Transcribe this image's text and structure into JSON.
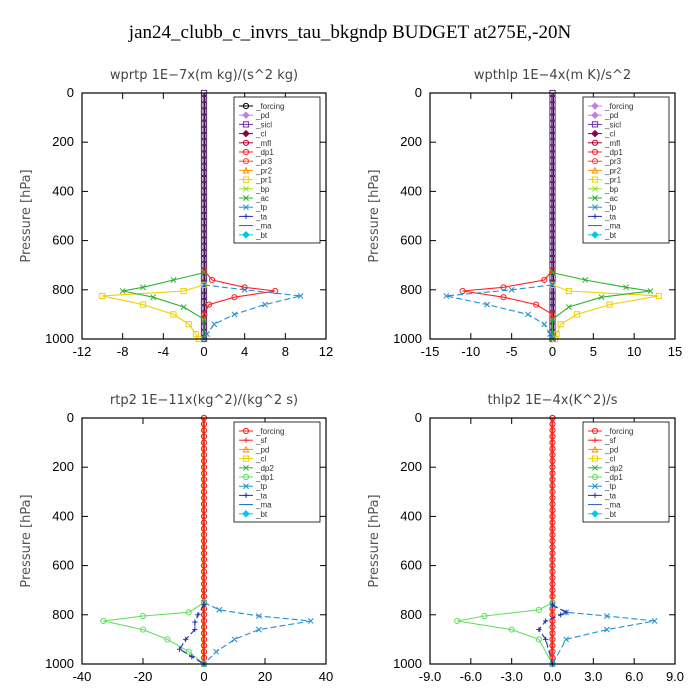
{
  "figure": {
    "title": "jan24_clubb_c_invrs_tau_bkgndp  BUDGET at275E,-20N"
  },
  "chart_data": [
    {
      "type": "line",
      "title": "wprtp  1E−7x(m kg)/(s^2 kg)",
      "ylabel": "Pressure [hPa]",
      "xlim": [
        -12,
        12
      ],
      "ylim": [
        1000,
        0
      ],
      "xticks": [
        "-12",
        "-8",
        "-4",
        "0",
        "4",
        "8",
        "12"
      ],
      "yticks": [
        "0",
        "200",
        "400",
        "600",
        "800",
        "1000"
      ],
      "grid": false,
      "legend": "top-right",
      "series": [
        {
          "name": "_forcing",
          "color": "#000000",
          "marker": "circle",
          "values": []
        },
        {
          "name": "_pd",
          "color": "#c080e0",
          "marker": "diamond",
          "values": []
        },
        {
          "name": "_sicl",
          "color": "#7030a0",
          "marker": "square",
          "values": []
        },
        {
          "name": "_cl",
          "color": "#8b0046",
          "marker": "diamond",
          "values": []
        },
        {
          "name": "_mfl",
          "color": "#b00030",
          "marker": "circle",
          "values": []
        },
        {
          "name": "_dp1",
          "color": "#ff2020",
          "marker": "circle",
          "values": [
            [
              0,
              720
            ],
            [
              0.8,
              760
            ],
            [
              4,
              790
            ],
            [
              7,
              805
            ],
            [
              3,
              830
            ],
            [
              0.5,
              860
            ],
            [
              0,
              900
            ],
            [
              0,
              1000
            ]
          ]
        },
        {
          "name": "_pr3",
          "color": "#ff4040",
          "marker": "circle",
          "values": []
        },
        {
          "name": "_pr2",
          "color": "#ff9000",
          "marker": "triangle",
          "values": []
        },
        {
          "name": "_pr1",
          "color": "#f0d000",
          "marker": "square",
          "values": [
            [
              0,
              780
            ],
            [
              -2,
              805
            ],
            [
              -10,
              825
            ],
            [
              -6,
              860
            ],
            [
              -3,
              900
            ],
            [
              -1.5,
              940
            ],
            [
              -0.8,
              980
            ],
            [
              -0.5,
              1000
            ]
          ]
        },
        {
          "name": "_bp",
          "color": "#90e020",
          "marker": "x",
          "values": []
        },
        {
          "name": "_ac",
          "color": "#30b030",
          "marker": "x",
          "values": [
            [
              0,
              730
            ],
            [
              -3,
              760
            ],
            [
              -6,
              790
            ],
            [
              -8,
              805
            ],
            [
              -5,
              830
            ],
            [
              -2,
              870
            ],
            [
              0,
              920
            ],
            [
              0,
              1000
            ]
          ]
        },
        {
          "name": "_tp",
          "color": "#2090d0",
          "marker": "x",
          "values": [
            [
              0,
              780
            ],
            [
              4,
              800
            ],
            [
              9.5,
              825
            ],
            [
              6,
              860
            ],
            [
              3,
              900
            ],
            [
              1,
              940
            ],
            [
              0.3,
              980
            ],
            [
              0,
              1000
            ]
          ]
        },
        {
          "name": "_ta",
          "color": "#2030b0",
          "marker": "plus",
          "values": []
        },
        {
          "name": "_ma",
          "color": "#2060c0",
          "marker": "none",
          "values": []
        },
        {
          "name": "_bt",
          "color": "#00c8e8",
          "marker": "diamond",
          "values": []
        }
      ]
    },
    {
      "type": "line",
      "title": "wpthlp  1E−4x(m K)/s^2",
      "ylabel": "Pressure [hPa]",
      "xlim": [
        -15,
        15
      ],
      "ylim": [
        1000,
        0
      ],
      "xticks": [
        "-15",
        "-10",
        "-5",
        "0",
        "5",
        "10",
        "15"
      ],
      "yticks": [
        "0",
        "200",
        "400",
        "600",
        "800",
        "1000"
      ],
      "grid": false,
      "legend": "top-right",
      "series": [
        {
          "name": "_forcing",
          "color": "#c080e0",
          "marker": "diamond",
          "values": []
        },
        {
          "name": "_pd",
          "color": "#c080e0",
          "marker": "diamond",
          "values": []
        },
        {
          "name": "_sicl",
          "color": "#7030a0",
          "marker": "square",
          "values": []
        },
        {
          "name": "_cl",
          "color": "#8b0046",
          "marker": "diamond",
          "values": []
        },
        {
          "name": "_mfl",
          "color": "#b00030",
          "marker": "circle",
          "values": []
        },
        {
          "name": "_dp1",
          "color": "#ff2020",
          "marker": "circle",
          "values": [
            [
              0,
              720
            ],
            [
              -1,
              760
            ],
            [
              -6,
              790
            ],
            [
              -11,
              805
            ],
            [
              -6,
              830
            ],
            [
              -2,
              860
            ],
            [
              0,
              900
            ],
            [
              0,
              1000
            ]
          ]
        },
        {
          "name": "_pr3",
          "color": "#ff4040",
          "marker": "circle",
          "values": []
        },
        {
          "name": "_pr2",
          "color": "#ff9000",
          "marker": "triangle",
          "values": []
        },
        {
          "name": "_pr1",
          "color": "#f0d000",
          "marker": "square",
          "values": [
            [
              0,
              780
            ],
            [
              2,
              805
            ],
            [
              13,
              825
            ],
            [
              7,
              860
            ],
            [
              3,
              900
            ],
            [
              1,
              940
            ],
            [
              0.5,
              980
            ],
            [
              0.3,
              1000
            ]
          ]
        },
        {
          "name": "_bp",
          "color": "#90e020",
          "marker": "x",
          "values": []
        },
        {
          "name": "_ac",
          "color": "#30b030",
          "marker": "x",
          "values": [
            [
              0,
              730
            ],
            [
              4,
              760
            ],
            [
              9,
              790
            ],
            [
              12,
              805
            ],
            [
              6,
              830
            ],
            [
              2,
              870
            ],
            [
              0,
              920
            ],
            [
              0,
              1000
            ]
          ]
        },
        {
          "name": "_tp",
          "color": "#2090d0",
          "marker": "x",
          "values": [
            [
              0,
              780
            ],
            [
              -5,
              800
            ],
            [
              -13,
              825
            ],
            [
              -8,
              860
            ],
            [
              -3,
              900
            ],
            [
              -1,
              940
            ],
            [
              -0.3,
              980
            ],
            [
              0,
              1000
            ]
          ]
        },
        {
          "name": "_ta",
          "color": "#2030b0",
          "marker": "plus",
          "values": []
        },
        {
          "name": "_ma",
          "color": "#2060c0",
          "marker": "none",
          "values": []
        },
        {
          "name": "_bt",
          "color": "#00c8e8",
          "marker": "diamond",
          "values": []
        }
      ]
    },
    {
      "type": "line",
      "title": "rtp2  1E−11x(kg^2)/(kg^2 s)",
      "ylabel": "Pressure [hPa]",
      "xlim": [
        -40,
        40
      ],
      "ylim": [
        1000,
        0
      ],
      "xticks": [
        "-40",
        "-20",
        "0",
        "20",
        "40"
      ],
      "yticks": [
        "0",
        "200",
        "400",
        "600",
        "800",
        "1000"
      ],
      "grid": false,
      "legend": "top-right",
      "series": [
        {
          "name": "_forcing",
          "color": "#ff2020",
          "marker": "circle",
          "values": [
            [
              0,
              0
            ],
            [
              0,
              1000
            ]
          ]
        },
        {
          "name": "_sf",
          "color": "#ff2020",
          "marker": "plus",
          "values": []
        },
        {
          "name": "_pd",
          "color": "#ff9000",
          "marker": "triangle",
          "values": []
        },
        {
          "name": "_cl",
          "color": "#f0d000",
          "marker": "square",
          "values": []
        },
        {
          "name": "_dp2",
          "color": "#30b030",
          "marker": "x",
          "values": []
        },
        {
          "name": "_dp1",
          "color": "#60e060",
          "marker": "circle",
          "values": [
            [
              0,
              750
            ],
            [
              -5,
              790
            ],
            [
              -20,
              805
            ],
            [
              -33,
              825
            ],
            [
              -20,
              860
            ],
            [
              -12,
              900
            ],
            [
              -5,
              950
            ],
            [
              0,
              1000
            ]
          ]
        },
        {
          "name": "_tp",
          "color": "#2090d0",
          "marker": "x",
          "values": [
            [
              0,
              750
            ],
            [
              5,
              780
            ],
            [
              18,
              805
            ],
            [
              35,
              825
            ],
            [
              18,
              860
            ],
            [
              10,
              900
            ],
            [
              4,
              950
            ],
            [
              0,
              1000
            ]
          ]
        },
        {
          "name": "_ta",
          "color": "#2030b0",
          "marker": "plus",
          "values": [
            [
              0,
              760
            ],
            [
              -2,
              800
            ],
            [
              -3,
              830
            ],
            [
              -3,
              860
            ],
            [
              -6,
              900
            ],
            [
              -8,
              940
            ],
            [
              -4,
              970
            ],
            [
              0,
              1000
            ]
          ]
        },
        {
          "name": "_ma",
          "color": "#2060c0",
          "marker": "none",
          "values": []
        },
        {
          "name": "_bt",
          "color": "#00c8e8",
          "marker": "diamond",
          "values": []
        }
      ]
    },
    {
      "type": "line",
      "title": "thlp2  1E−4x(K^2)/s",
      "ylabel": "Pressure [hPa]",
      "xlim": [
        -9,
        9
      ],
      "ylim": [
        1000,
        0
      ],
      "xticks": [
        "-9.0",
        "-6.0",
        "-3.0",
        "0.0",
        "3.0",
        "6.0",
        "9.0"
      ],
      "yticks": [
        "0",
        "200",
        "400",
        "600",
        "800",
        "1000"
      ],
      "grid": false,
      "legend": "top-right",
      "series": [
        {
          "name": "_forcing",
          "color": "#ff2020",
          "marker": "circle",
          "values": [
            [
              0,
              0
            ],
            [
              0,
              1000
            ]
          ]
        },
        {
          "name": "_sf",
          "color": "#ff2020",
          "marker": "plus",
          "values": []
        },
        {
          "name": "_pd",
          "color": "#ff9000",
          "marker": "triangle",
          "values": []
        },
        {
          "name": "_cl",
          "color": "#f0d000",
          "marker": "square",
          "values": []
        },
        {
          "name": "_dp2",
          "color": "#30b030",
          "marker": "x",
          "values": []
        },
        {
          "name": "_dp1",
          "color": "#60e060",
          "marker": "circle",
          "values": [
            [
              0,
              750
            ],
            [
              -1,
              780
            ],
            [
              -5,
              805
            ],
            [
              -7,
              825
            ],
            [
              -3,
              860
            ],
            [
              -1,
              900
            ],
            [
              0,
              1000
            ]
          ]
        },
        {
          "name": "_tp",
          "color": "#2090d0",
          "marker": "x",
          "values": [
            [
              0,
              760
            ],
            [
              1,
              790
            ],
            [
              4,
              805
            ],
            [
              7.5,
              825
            ],
            [
              4,
              860
            ],
            [
              1,
              900
            ],
            [
              0,
              1000
            ]
          ]
        },
        {
          "name": "_ta",
          "color": "#2030b0",
          "marker": "plus",
          "values": [
            [
              0,
              760
            ],
            [
              1,
              790
            ],
            [
              0.6,
              800
            ],
            [
              -0.5,
              825
            ],
            [
              -1,
              860
            ],
            [
              -0.5,
              900
            ],
            [
              0,
              1000
            ]
          ]
        },
        {
          "name": "_ma",
          "color": "#2060c0",
          "marker": "none",
          "values": []
        },
        {
          "name": "_bt",
          "color": "#00c8e8",
          "marker": "diamond",
          "values": []
        }
      ]
    }
  ]
}
